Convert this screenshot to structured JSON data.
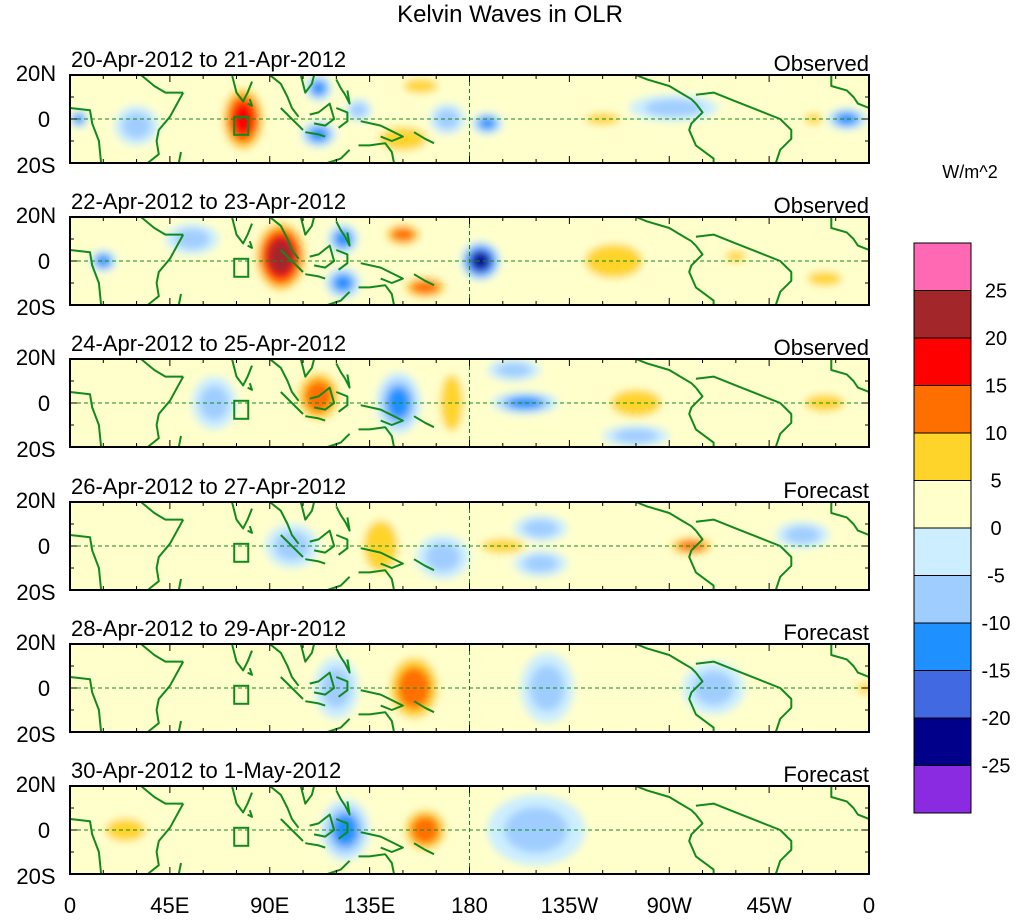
{
  "chart_data": {
    "type": "heatmap",
    "title": "Kelvin Waves in OLR",
    "variable": "OLR anomaly",
    "units": "W/m^2",
    "colorbar": {
      "label": "W/m^2",
      "levels": [
        25,
        20,
        15,
        10,
        5,
        0,
        -5,
        -10,
        -15,
        -20,
        -25
      ],
      "colors": [
        "#ff69b4",
        "#a3262a",
        "#ff0000",
        "#ff6f00",
        "#ffd42a",
        "#ffffcc",
        "#cceeff",
        "#a0cdff",
        "#1e90ff",
        "#4169e1",
        "#00008b",
        "#8a2be2"
      ]
    },
    "x_axis": {
      "tick_labels": [
        "0",
        "45E",
        "90E",
        "135E",
        "180",
        "135W",
        "90W",
        "45W",
        "0"
      ],
      "tick_lon": [
        0,
        45,
        90,
        135,
        180,
        225,
        270,
        315,
        360
      ],
      "range": [
        0,
        360
      ]
    },
    "y_axis": {
      "tick_labels": [
        "20N",
        "0",
        "20S"
      ],
      "range": [
        -20,
        20
      ]
    },
    "panels": [
      {
        "date": "20-Apr-2012 to 21-Apr-2012",
        "kind": "Observed",
        "anomalies": [
          {
            "lon": 78,
            "lat": 0,
            "w": 11,
            "h": 17,
            "v": 17
          },
          {
            "lon": 150,
            "lat": -9,
            "w": 14,
            "h": 7,
            "v": 10
          },
          {
            "lon": 158,
            "lat": 15,
            "w": 12,
            "h": 5,
            "v": 6
          },
          {
            "lon": 112,
            "lat": 14,
            "w": 6,
            "h": 6,
            "v": -13
          },
          {
            "lon": 112,
            "lat": -7,
            "w": 8,
            "h": 6,
            "v": -14
          },
          {
            "lon": 130,
            "lat": 4,
            "w": 6,
            "h": 5,
            "v": -7
          },
          {
            "lon": 188,
            "lat": -2,
            "w": 7,
            "h": 5,
            "v": -14
          },
          {
            "lon": 170,
            "lat": 0,
            "w": 8,
            "h": 7,
            "v": -6
          },
          {
            "lon": 240,
            "lat": 0,
            "w": 12,
            "h": 4,
            "v": 7
          },
          {
            "lon": 272,
            "lat": 5,
            "w": 20,
            "h": 6,
            "v": -6
          },
          {
            "lon": 350,
            "lat": 0,
            "w": 9,
            "h": 5,
            "v": -13
          },
          {
            "lon": 335,
            "lat": 0,
            "w": 6,
            "h": 4,
            "v": 7
          },
          {
            "lon": 30,
            "lat": -3,
            "w": 10,
            "h": 9,
            "v": -6
          },
          {
            "lon": 4,
            "lat": 0,
            "w": 4,
            "h": 4,
            "v": -10
          }
        ]
      },
      {
        "date": "22-Apr-2012 to 23-Apr-2012",
        "kind": "Observed",
        "anomalies": [
          {
            "lon": 95,
            "lat": 2,
            "w": 13,
            "h": 18,
            "v": 22
          },
          {
            "lon": 150,
            "lat": 12,
            "w": 10,
            "h": 6,
            "v": 13
          },
          {
            "lon": 160,
            "lat": -12,
            "w": 12,
            "h": 6,
            "v": 11
          },
          {
            "lon": 123,
            "lat": 10,
            "w": 7,
            "h": 7,
            "v": -14
          },
          {
            "lon": 123,
            "lat": -10,
            "w": 8,
            "h": 7,
            "v": -13
          },
          {
            "lon": 185,
            "lat": 0,
            "w": 9,
            "h": 9,
            "v": -22
          },
          {
            "lon": 245,
            "lat": 0,
            "w": 20,
            "h": 12,
            "v": 8
          },
          {
            "lon": 300,
            "lat": 2,
            "w": 7,
            "h": 4,
            "v": 7
          },
          {
            "lon": 55,
            "lat": 10,
            "w": 12,
            "h": 7,
            "v": -6
          },
          {
            "lon": 15,
            "lat": 0,
            "w": 6,
            "h": 5,
            "v": -10
          },
          {
            "lon": 340,
            "lat": -8,
            "w": 12,
            "h": 5,
            "v": 6
          }
        ]
      },
      {
        "date": "24-Apr-2012 to 25-Apr-2012",
        "kind": "Observed",
        "anomalies": [
          {
            "lon": 112,
            "lat": 3,
            "w": 12,
            "h": 14,
            "v": 13
          },
          {
            "lon": 175,
            "lat": 0,
            "w": 6,
            "h": 6,
            "v": 13
          },
          {
            "lon": 172,
            "lat": 0,
            "w": 8,
            "h": 20,
            "v": 6
          },
          {
            "lon": 148,
            "lat": 0,
            "w": 10,
            "h": 14,
            "v": -12
          },
          {
            "lon": 205,
            "lat": 0,
            "w": 15,
            "h": 5,
            "v": -12
          },
          {
            "lon": 255,
            "lat": 0,
            "w": 15,
            "h": 8,
            "v": 10
          },
          {
            "lon": 255,
            "lat": -15,
            "w": 15,
            "h": 5,
            "v": -6
          },
          {
            "lon": 340,
            "lat": 0,
            "w": 14,
            "h": 6,
            "v": 6
          },
          {
            "lon": 200,
            "lat": 15,
            "w": 12,
            "h": 5,
            "v": -7
          },
          {
            "lon": 65,
            "lat": 0,
            "w": 10,
            "h": 12,
            "v": -6
          }
        ]
      },
      {
        "date": "26-Apr-2012 to 27-Apr-2012",
        "kind": "Forecast",
        "anomalies": [
          {
            "lon": 140,
            "lat": 0,
            "w": 12,
            "h": 18,
            "v": 8
          },
          {
            "lon": 280,
            "lat": 0,
            "w": 12,
            "h": 5,
            "v": 12
          },
          {
            "lon": 168,
            "lat": -5,
            "w": 12,
            "h": 10,
            "v": -7
          },
          {
            "lon": 212,
            "lat": 8,
            "w": 12,
            "h": 6,
            "v": -6
          },
          {
            "lon": 212,
            "lat": -8,
            "w": 12,
            "h": 6,
            "v": -6
          },
          {
            "lon": 195,
            "lat": 0,
            "w": 15,
            "h": 5,
            "v": 6
          },
          {
            "lon": 330,
            "lat": 5,
            "w": 12,
            "h": 6,
            "v": -6
          },
          {
            "lon": 100,
            "lat": 0,
            "w": 12,
            "h": 10,
            "v": -5
          }
        ]
      },
      {
        "date": "28-Apr-2012 to 29-Apr-2012",
        "kind": "Forecast",
        "anomalies": [
          {
            "lon": 155,
            "lat": 0,
            "w": 14,
            "h": 18,
            "v": 11
          },
          {
            "lon": 215,
            "lat": 0,
            "w": 12,
            "h": 16,
            "v": -6
          },
          {
            "lon": 290,
            "lat": 0,
            "w": 14,
            "h": 12,
            "v": -6
          },
          {
            "lon": 255,
            "lat": 5,
            "w": 15,
            "h": 10,
            "v": 5
          },
          {
            "lon": 120,
            "lat": 0,
            "w": 10,
            "h": 14,
            "v": -5
          },
          {
            "lon": 358,
            "lat": 0,
            "w": 5,
            "h": 4,
            "v": 6
          }
        ]
      },
      {
        "date": "30-Apr-2012 to 1-May-2012",
        "kind": "Forecast",
        "anomalies": [
          {
            "lon": 124,
            "lat": 0,
            "w": 11,
            "h": 14,
            "v": -13
          },
          {
            "lon": 160,
            "lat": 0,
            "w": 12,
            "h": 12,
            "v": 12
          },
          {
            "lon": 25,
            "lat": 0,
            "w": 14,
            "h": 8,
            "v": 7
          },
          {
            "lon": 210,
            "lat": 0,
            "w": 22,
            "h": 16,
            "v": -5
          },
          {
            "lon": 300,
            "lat": -5,
            "w": 20,
            "h": 12,
            "v": 5
          }
        ]
      }
    ]
  }
}
